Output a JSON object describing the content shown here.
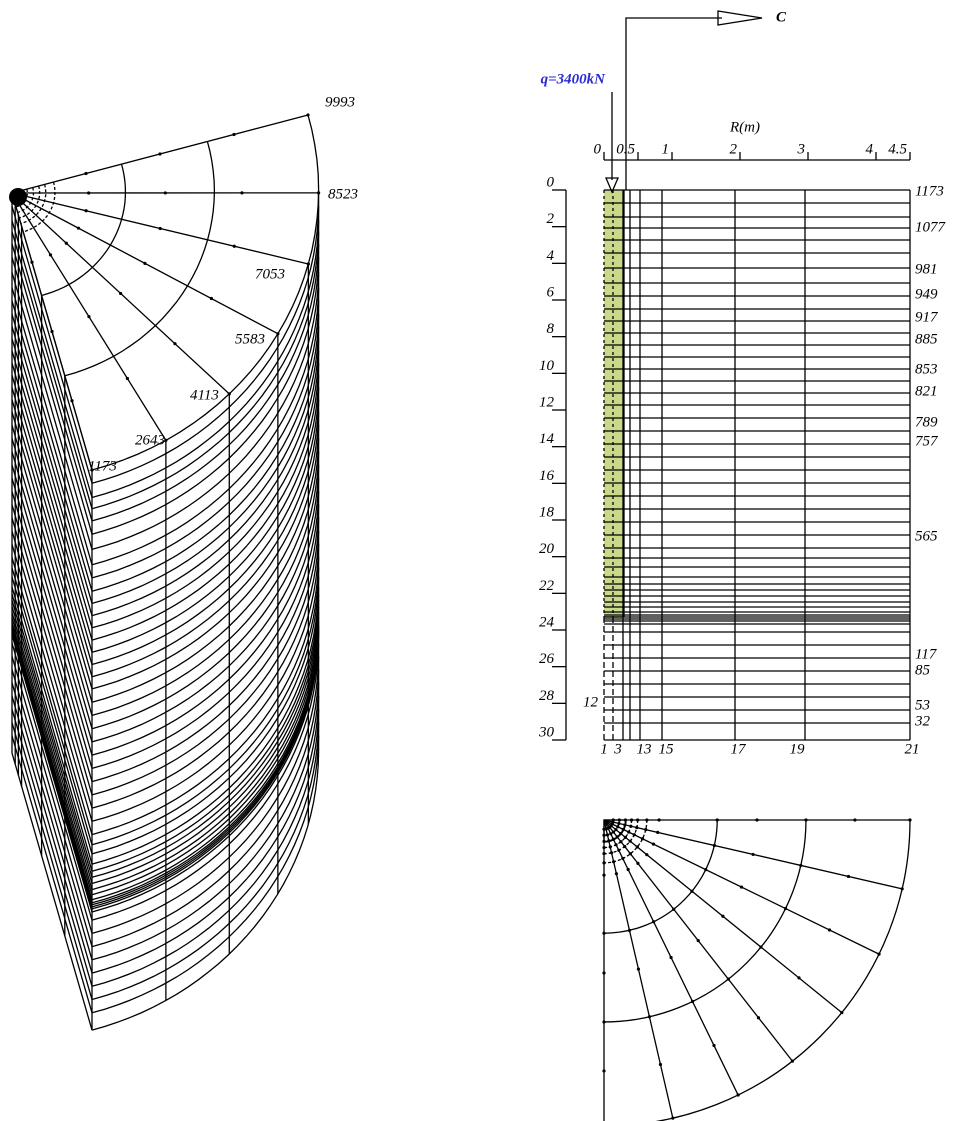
{
  "mesh_3d": {
    "node_labels": [
      "9993",
      "8523",
      "7053",
      "5583",
      "4113",
      "2643",
      "1173"
    ]
  },
  "section": {
    "section_label": "C",
    "load_label": "q=3400kN",
    "radius_axis": {
      "title": "R(m)",
      "ticks": [
        0,
        0.5,
        1,
        2,
        3,
        4,
        4.5
      ]
    },
    "depth_ticks": [
      0,
      2,
      4,
      6,
      8,
      10,
      12,
      14,
      16,
      18,
      20,
      22,
      24,
      26,
      28,
      30
    ],
    "right_node_labels": [
      "1173",
      "1077",
      "981",
      "949",
      "917",
      "885",
      "853",
      "821",
      "789",
      "757",
      "565",
      "117",
      "85",
      "53",
      "32"
    ],
    "bottom_node_labels": [
      "1",
      "3",
      "13",
      "15",
      "17",
      "19",
      "21"
    ],
    "left_node_label": "12"
  }
}
